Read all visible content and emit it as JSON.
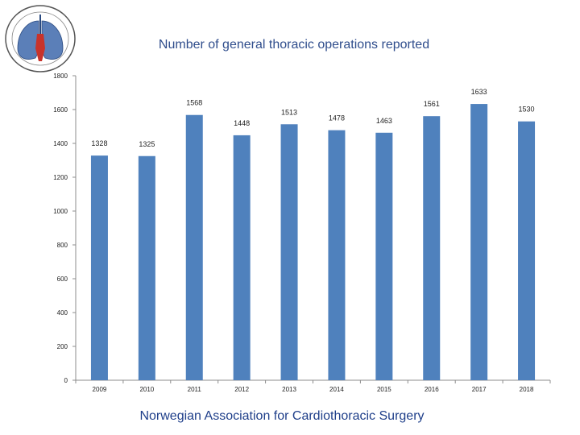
{
  "title": "Number of general thoracic operations reported",
  "footer": "Norwegian Association for Cardiothoracic Surgery",
  "logo": {
    "label": "Norwegian Association for Cardiothoracic Surgery logo (lungs emblem)"
  },
  "colors": {
    "bar": "#4f81bd",
    "axis": "#8c8c8c",
    "title": "#2f4d8c"
  },
  "chart_data": {
    "type": "bar",
    "title": "Number of general thoracic operations reported",
    "categories": [
      "2009",
      "2010",
      "2011",
      "2012",
      "2013",
      "2014",
      "2015",
      "2016",
      "2017",
      "2018"
    ],
    "values": [
      1328,
      1325,
      1568,
      1448,
      1513,
      1478,
      1463,
      1561,
      1633,
      1530
    ],
    "data_labels": [
      "1328",
      "1325",
      "1568",
      "1448",
      "1513",
      "1478",
      "1463",
      "1561",
      "1633",
      "1530"
    ],
    "ylim": [
      0,
      1800
    ],
    "yticks": [
      0,
      200,
      400,
      600,
      800,
      1000,
      1200,
      1400,
      1600,
      1800
    ],
    "xlabel": "",
    "ylabel": "",
    "grid": false,
    "legend": "none"
  }
}
